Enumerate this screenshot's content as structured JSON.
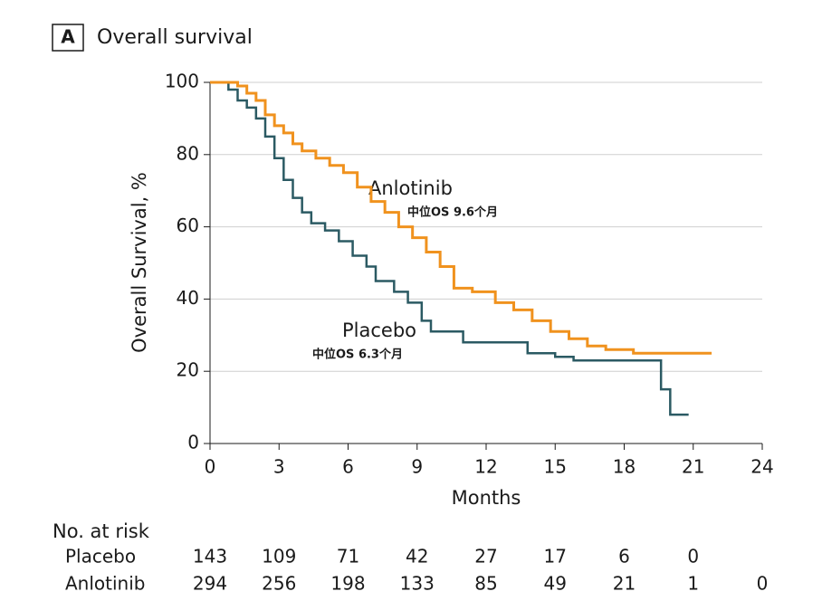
{
  "chart_data": {
    "type": "km_step",
    "panel_label": "A",
    "title": "Overall survival",
    "ylabel": "Overall Survival, %",
    "xlabel": "Months",
    "xlim": [
      0,
      24
    ],
    "xticks": [
      0,
      3,
      6,
      9,
      12,
      15,
      18,
      21,
      24
    ],
    "ylim": [
      0,
      100
    ],
    "yticks": [
      0,
      20,
      40,
      60,
      80,
      100
    ],
    "grid": true,
    "series": [
      {
        "name": "Placebo",
        "color": "#2b5a63",
        "annotation": "中位OS 6.3个月",
        "x": [
          0,
          0.5,
          0.8,
          1.2,
          1.6,
          2.0,
          2.4,
          2.8,
          3.2,
          3.6,
          4.0,
          4.4,
          5.0,
          5.6,
          6.2,
          6.8,
          7.2,
          8.0,
          8.6,
          9.2,
          9.6,
          11.0,
          13.0,
          13.8,
          15.0,
          15.8,
          19.6,
          20.0,
          20.8
        ],
        "values": [
          100,
          100,
          98,
          95,
          93,
          90,
          85,
          79,
          73,
          68,
          64,
          61,
          59,
          56,
          52,
          49,
          45,
          42,
          39,
          34,
          31,
          28,
          28,
          25,
          24,
          23,
          15,
          8,
          8
        ]
      },
      {
        "name": "Anlotinib",
        "color": "#f0921e",
        "annotation": "中位OS 9.6个月",
        "x": [
          0,
          0.8,
          1.2,
          1.6,
          2.0,
          2.4,
          2.8,
          3.2,
          3.6,
          4.0,
          4.6,
          5.2,
          5.8,
          6.4,
          7.0,
          7.6,
          8.2,
          8.8,
          9.4,
          10.0,
          10.6,
          11.4,
          12.4,
          13.2,
          14.0,
          14.8,
          15.6,
          16.4,
          17.2,
          18.4,
          21.8
        ],
        "values": [
          100,
          100,
          99,
          97,
          95,
          91,
          88,
          86,
          83,
          81,
          79,
          77,
          75,
          71,
          67,
          64,
          60,
          57,
          53,
          49,
          43,
          42,
          39,
          37,
          34,
          31,
          29,
          27,
          26,
          25,
          25
        ]
      }
    ],
    "risk_table": {
      "title": "No. at risk",
      "rows": [
        {
          "name": "Placebo",
          "values": [
            143,
            109,
            71,
            42,
            27,
            17,
            6,
            0
          ]
        },
        {
          "name": "Anlotinib",
          "values": [
            294,
            256,
            198,
            133,
            85,
            49,
            21,
            1,
            0
          ]
        }
      ]
    }
  }
}
